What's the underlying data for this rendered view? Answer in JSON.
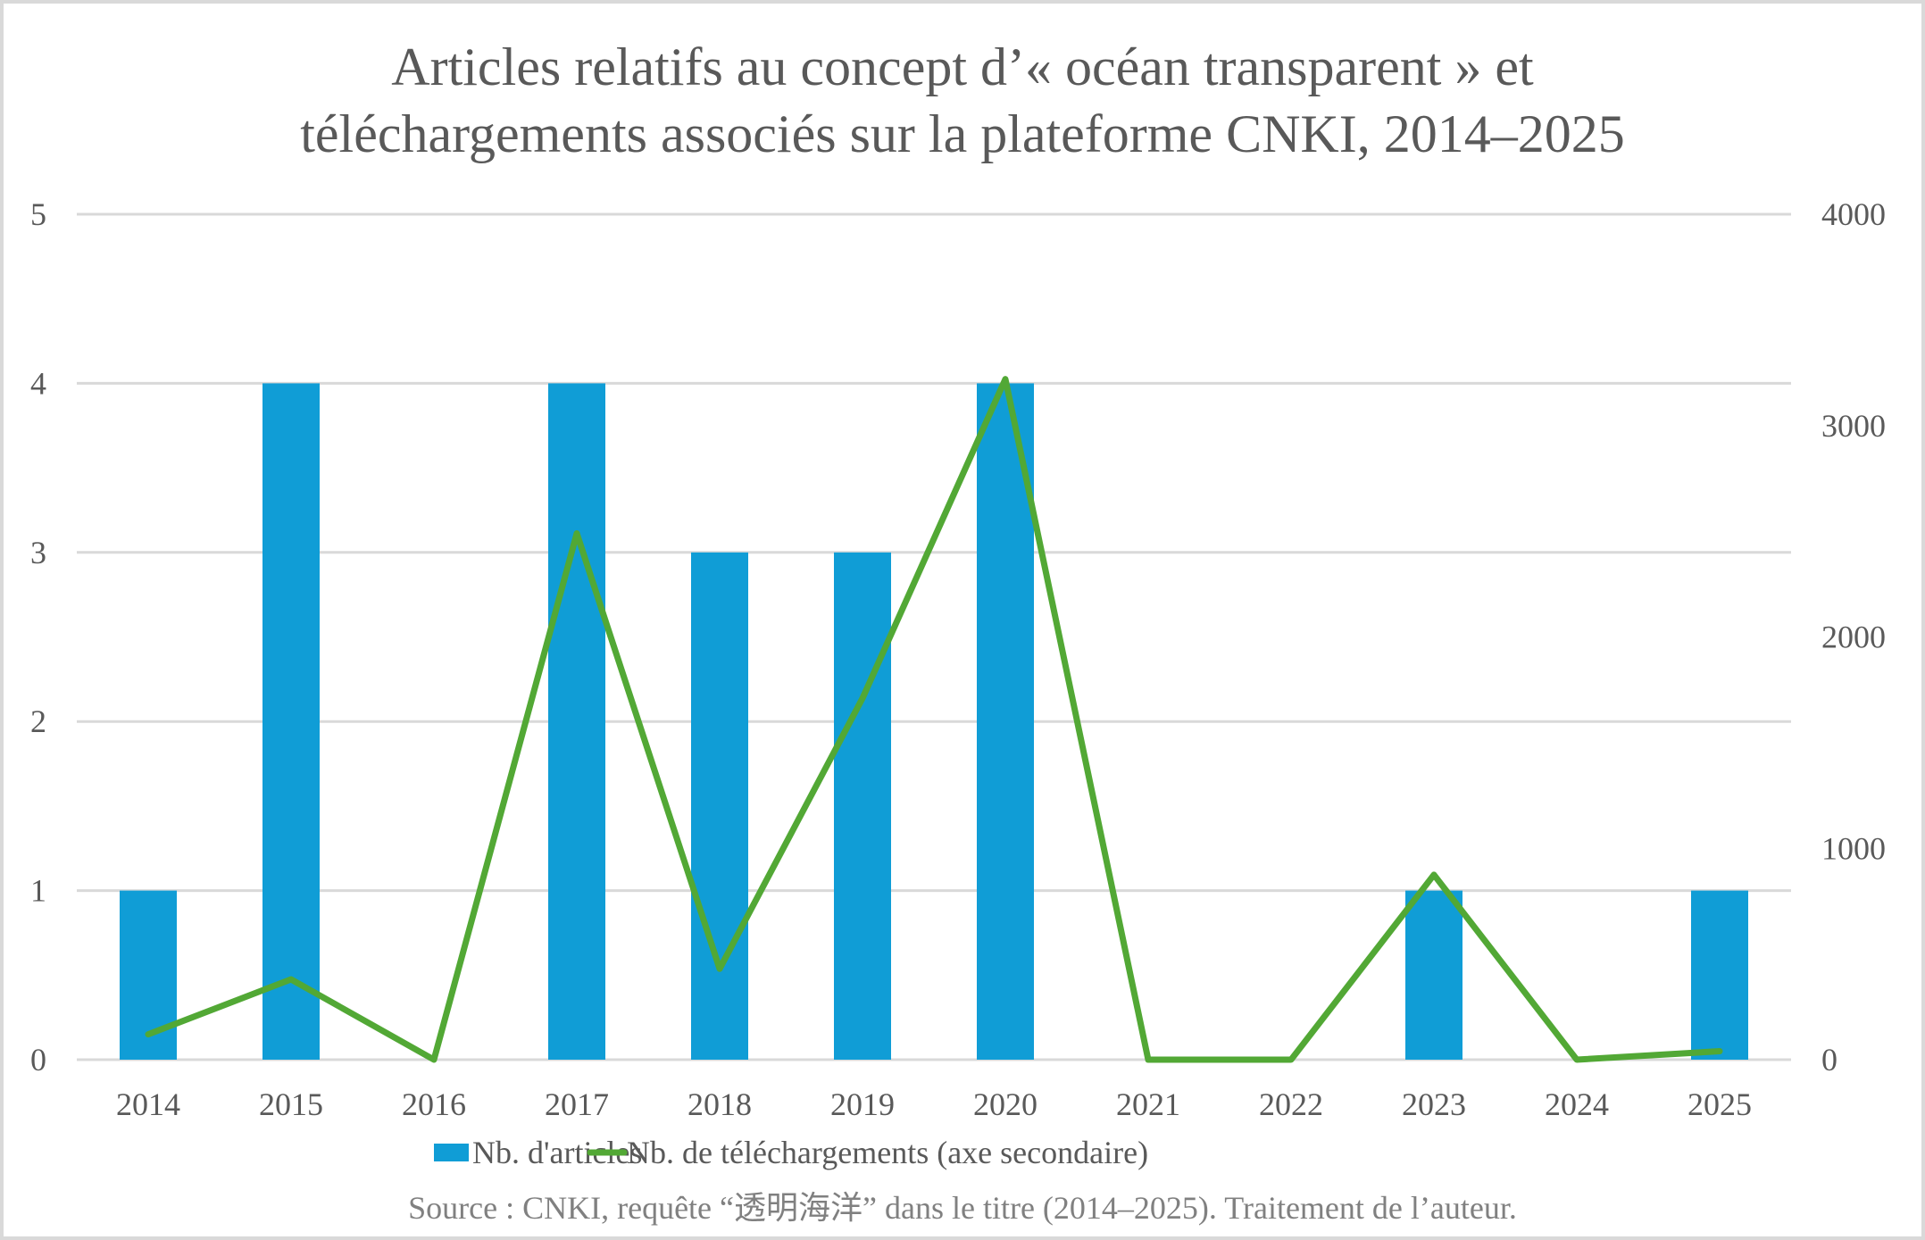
{
  "chart_data": {
    "type": "bar",
    "title_lines": [
      "Articles relatifs au concept d’« océan transparent » et",
      "téléchargements associés sur la plateforme CNKI, 2014–2025"
    ],
    "categories": [
      "2014",
      "2015",
      "2016",
      "2017",
      "2018",
      "2019",
      "2020",
      "2021",
      "2022",
      "2023",
      "2024",
      "2025"
    ],
    "series": [
      {
        "name": "Nb. d'articles",
        "type": "bar",
        "axis": "primary",
        "color": "#109DD6",
        "values": [
          1,
          4,
          0,
          4,
          3,
          3,
          4,
          0,
          0,
          1,
          0,
          1
        ]
      },
      {
        "name": "Nb. de téléchargements (axe secondaire)",
        "type": "line",
        "axis": "secondary",
        "color": "#52A835",
        "values": [
          120,
          380,
          0,
          2490,
          430,
          1710,
          3220,
          0,
          0,
          875,
          0,
          40
        ]
      }
    ],
    "y_axis": {
      "min": 0,
      "max": 5,
      "ticks": [
        0,
        1,
        2,
        3,
        4,
        5
      ]
    },
    "y2_axis": {
      "min": 0,
      "max": 4000,
      "ticks": [
        0,
        1000,
        2000,
        3000,
        4000
      ]
    },
    "xlabel": "",
    "ylabel": "",
    "grid": true,
    "legend_position": "bottom",
    "source": "Source : CNKI, requête “透明海洋” dans le titre (2014–2025). Traitement de l’auteur."
  }
}
